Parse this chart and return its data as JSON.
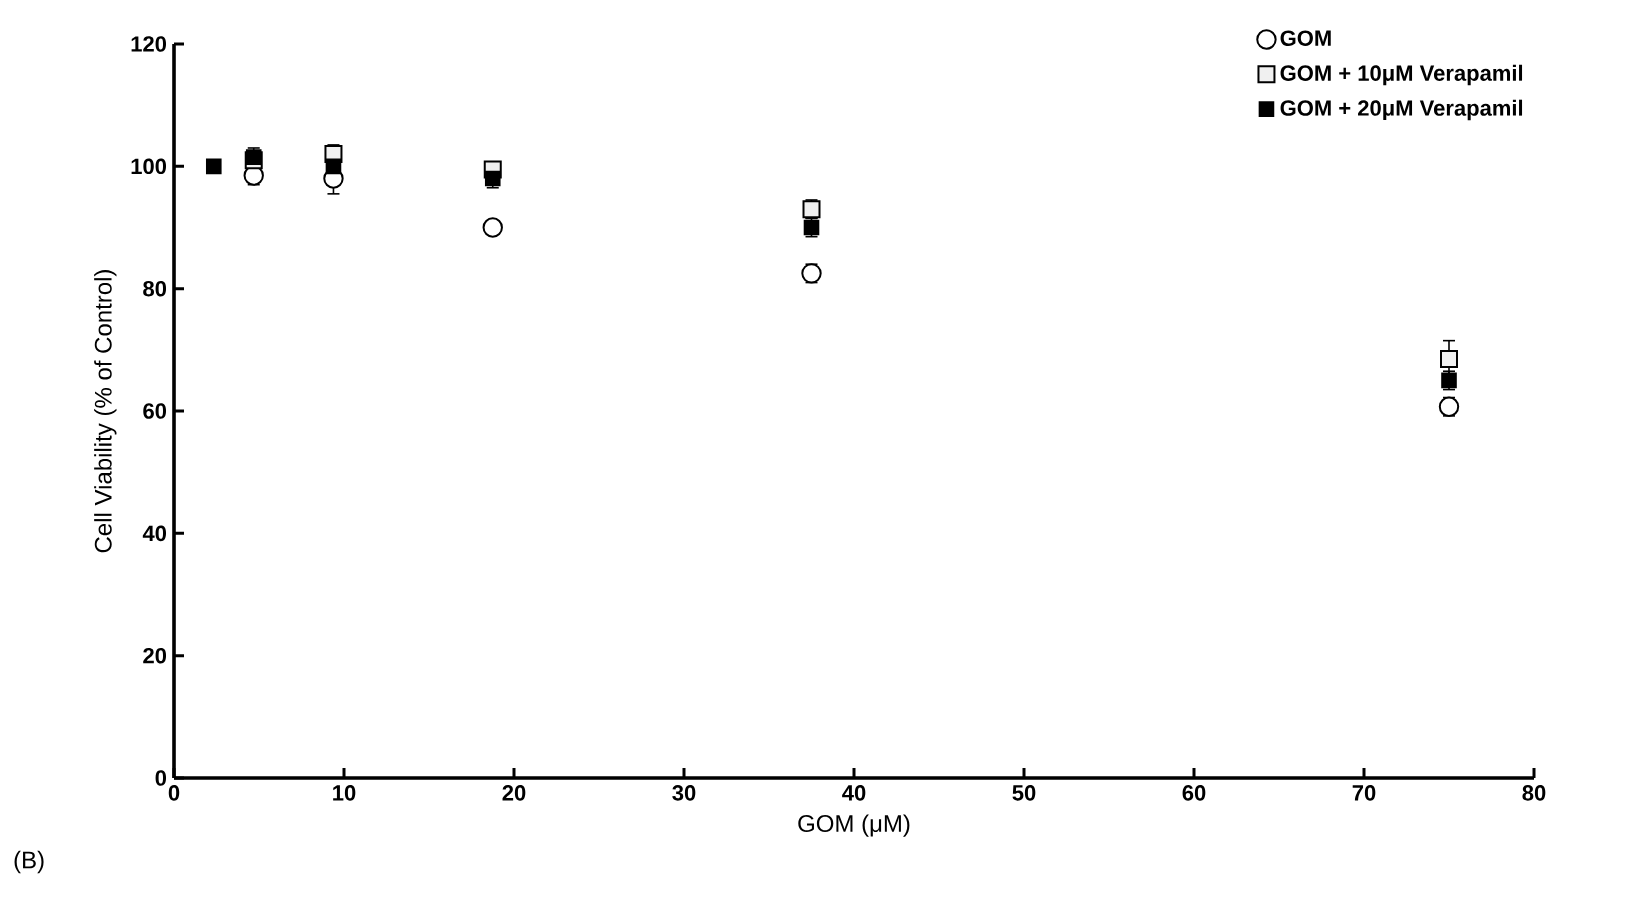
{
  "chart_data": {
    "type": "scatter",
    "xlabel": "GOM (μM)",
    "ylabel": "Cell Viability (% of Control)",
    "annotations": [
      "(B)"
    ],
    "x": [
      2.34,
      4.69,
      9.38,
      18.75,
      37.5,
      75
    ],
    "xlim": [
      0,
      80
    ],
    "xticks": [
      0,
      10,
      20,
      30,
      40,
      50,
      60,
      70,
      80
    ],
    "ylim": [
      0,
      120
    ],
    "yticks": [
      0,
      20,
      40,
      60,
      80,
      100,
      120
    ],
    "grid": false,
    "legend": "top right",
    "series": [
      {
        "name": "GOM",
        "color": "#ffffff",
        "marker": "circle",
        "values": [
          null,
          98.5,
          98,
          90,
          82.5,
          60.7
        ],
        "errors": [
          null,
          1.5,
          2.5,
          null,
          1.5,
          1.5
        ]
      },
      {
        "name": "GOM + 10μM Verapamil",
        "color": "#f0f0f0",
        "marker": "square",
        "values": [
          null,
          101,
          102,
          99.5,
          93,
          68.5
        ],
        "errors": [
          null,
          1,
          1.5,
          1,
          1.5,
          3
        ]
      },
      {
        "name": "GOM + 20μM Verapamil",
        "color": "#000000",
        "marker": "square",
        "values": [
          100,
          101.5,
          100,
          98,
          90,
          65
        ],
        "errors": [
          null,
          1.5,
          1.5,
          1.5,
          1.5,
          1.5
        ]
      }
    ]
  }
}
